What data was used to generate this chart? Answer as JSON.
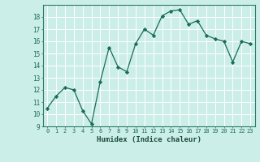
{
  "x": [
    0,
    1,
    2,
    3,
    4,
    5,
    6,
    7,
    8,
    9,
    10,
    11,
    12,
    13,
    14,
    15,
    16,
    17,
    18,
    19,
    20,
    21,
    22,
    23
  ],
  "y": [
    10.5,
    11.5,
    12.2,
    12.0,
    10.3,
    9.2,
    12.7,
    15.5,
    13.9,
    13.5,
    15.8,
    17.0,
    16.5,
    18.1,
    18.5,
    18.6,
    17.4,
    17.7,
    16.5,
    16.2,
    16.0,
    14.3,
    16.0,
    15.8
  ],
  "xlabel": "Humidex (Indice chaleur)",
  "ylim": [
    9,
    19
  ],
  "xlim": [
    -0.5,
    23.5
  ],
  "yticks": [
    9,
    10,
    11,
    12,
    13,
    14,
    15,
    16,
    17,
    18
  ],
  "xticks": [
    0,
    1,
    2,
    3,
    4,
    5,
    6,
    7,
    8,
    9,
    10,
    11,
    12,
    13,
    14,
    15,
    16,
    17,
    18,
    19,
    20,
    21,
    22,
    23
  ],
  "line_color": "#1a6b5a",
  "marker": "D",
  "marker_size": 2.2,
  "bg_color": "#cceee8",
  "grid_color": "#ffffff",
  "axis_color": "#2a7a6a",
  "tick_label_color": "#1a6b5a",
  "xlabel_color": "#1a4a3a"
}
